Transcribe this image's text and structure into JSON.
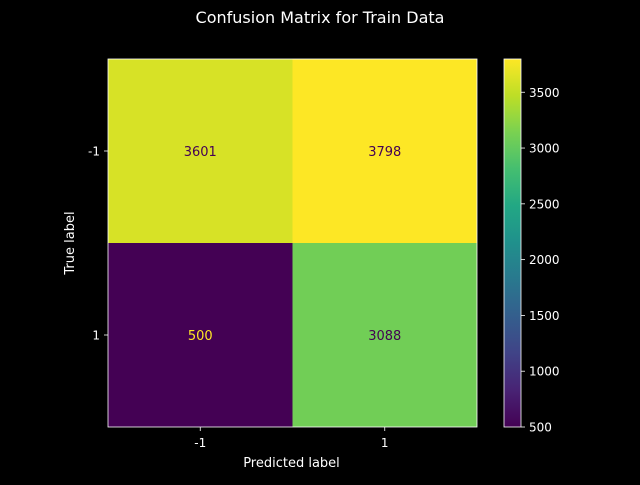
{
  "chart_data": {
    "type": "heatmap",
    "title": "Confusion Matrix for Train Data",
    "xlabel": "Predicted label",
    "ylabel": "True label",
    "x_categories": [
      "-1",
      "1"
    ],
    "y_categories": [
      "-1",
      "1"
    ],
    "values": [
      [
        3601,
        3798
      ],
      [
        500,
        3088
      ]
    ],
    "colormap": "viridis",
    "colorbar": {
      "range": [
        500,
        3798
      ],
      "ticks": [
        500,
        1000,
        1500,
        2000,
        2500,
        3000,
        3500
      ]
    },
    "colors": {
      "background": "#000000",
      "foreground": "#ffffff",
      "text_on_bright": "#440154",
      "text_on_dark": "#fde725"
    }
  }
}
